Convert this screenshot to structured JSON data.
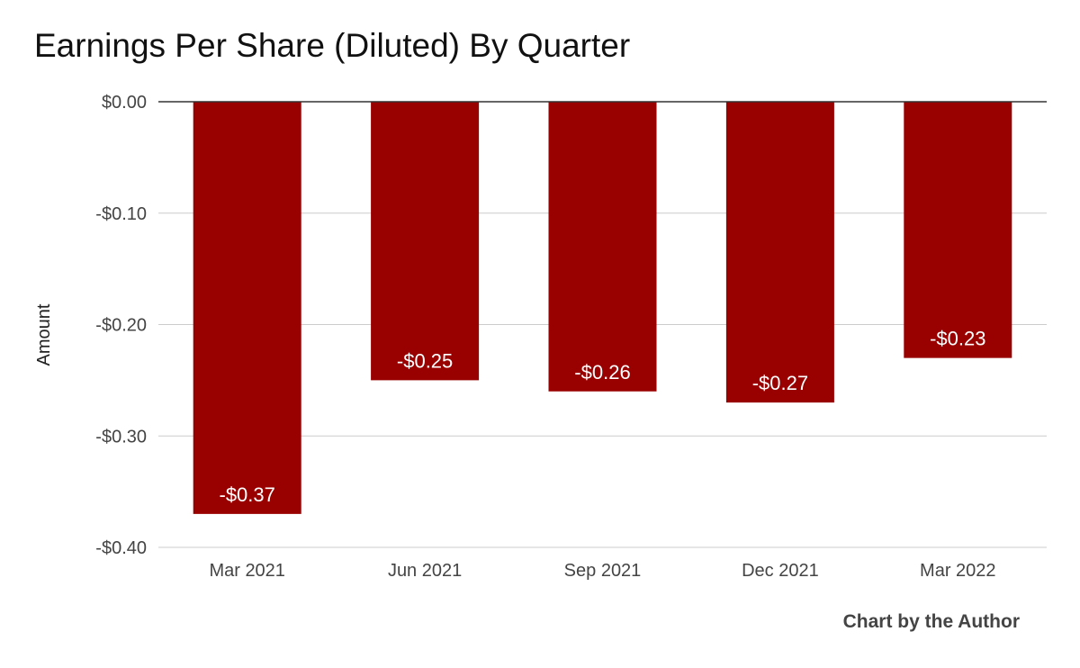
{
  "chart_data": {
    "type": "bar",
    "title": "Earnings Per Share (Diluted) By Quarter",
    "xlabel": "",
    "ylabel": "Amount",
    "categories": [
      "Mar 2021",
      "Jun 2021",
      "Sep 2021",
      "Dec 2021",
      "Mar 2022"
    ],
    "values": [
      -0.37,
      -0.25,
      -0.26,
      -0.27,
      -0.23
    ],
    "data_labels": [
      "-$0.37",
      "-$0.25",
      "-$0.26",
      "-$0.27",
      "-$0.23"
    ],
    "yticks": [
      0,
      -0.1,
      -0.2,
      -0.3,
      -0.4
    ],
    "ytick_labels": [
      "$0.00",
      "-$0.10",
      "-$0.20",
      "-$0.30",
      "-$0.40"
    ],
    "ylim": [
      -0.4,
      0
    ],
    "grid": true,
    "bar_color": "#990000",
    "credit": "Chart by the Author"
  }
}
